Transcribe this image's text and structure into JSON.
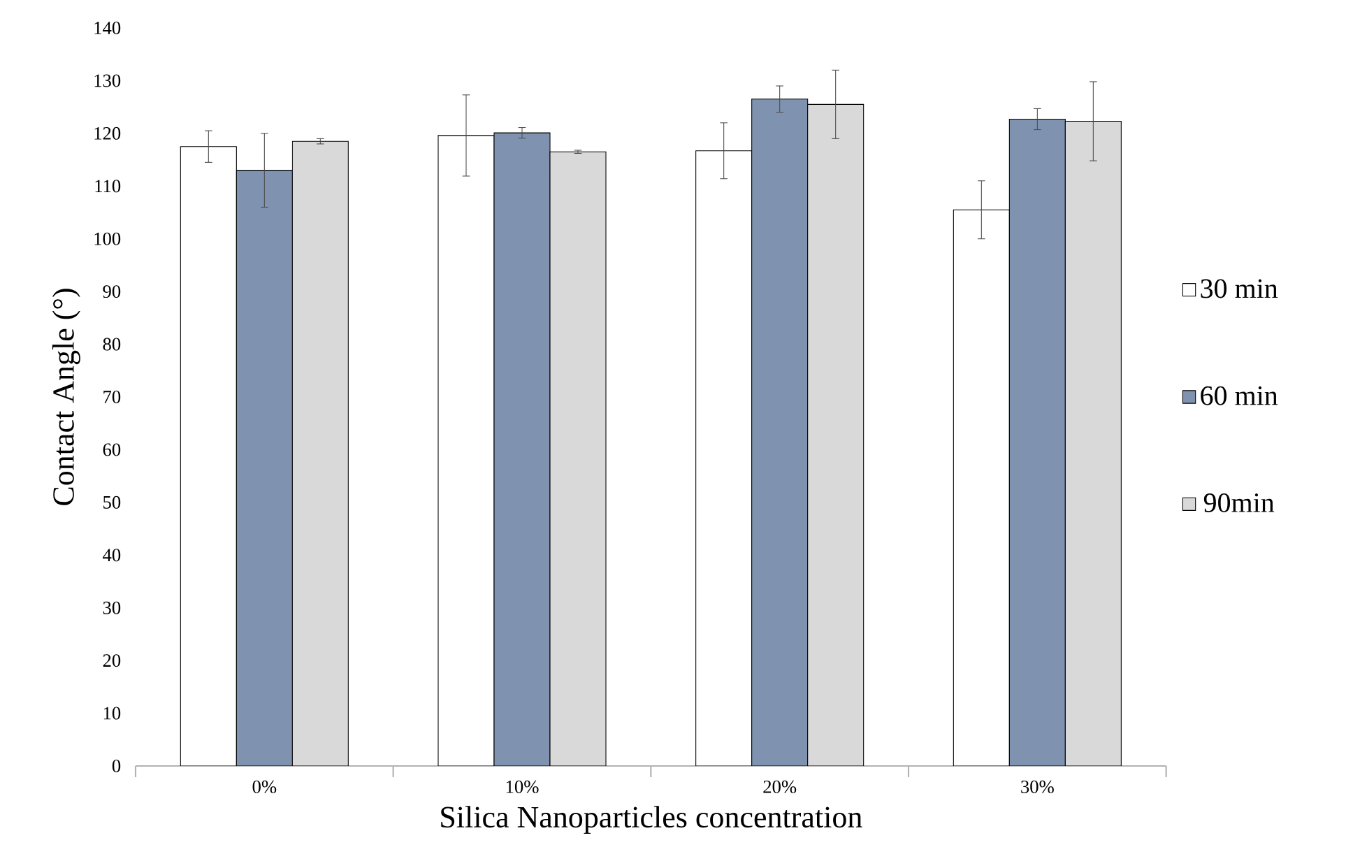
{
  "chart_data": {
    "type": "bar",
    "xlabel": "Silica Nanoparticles concentration",
    "ylabel": "Contact Angle (°)",
    "categories": [
      "0%",
      "10%",
      "20%",
      "30%"
    ],
    "series": [
      {
        "name": "30 min",
        "color": "#ffffff",
        "values": [
          117.5,
          119.6,
          116.7,
          105.5
        ],
        "errors": [
          3,
          7.7,
          5.3,
          5.5
        ]
      },
      {
        "name": "60 min",
        "color": "#7f93b0",
        "values": [
          113,
          120.1,
          126.5,
          122.7
        ],
        "errors": [
          7,
          1,
          2.5,
          2
        ]
      },
      {
        "name": "90min",
        "color": "#d9d9d9",
        "values": [
          118.5,
          116.5,
          125.5,
          122.3
        ],
        "errors": [
          0.5,
          0.3,
          6.5,
          7.5
        ]
      }
    ],
    "ylim": [
      0,
      140
    ],
    "yticks": [
      0,
      10,
      20,
      30,
      40,
      50,
      60,
      70,
      80,
      90,
      100,
      110,
      120,
      130,
      140
    ],
    "grid": false,
    "legend": "right"
  }
}
